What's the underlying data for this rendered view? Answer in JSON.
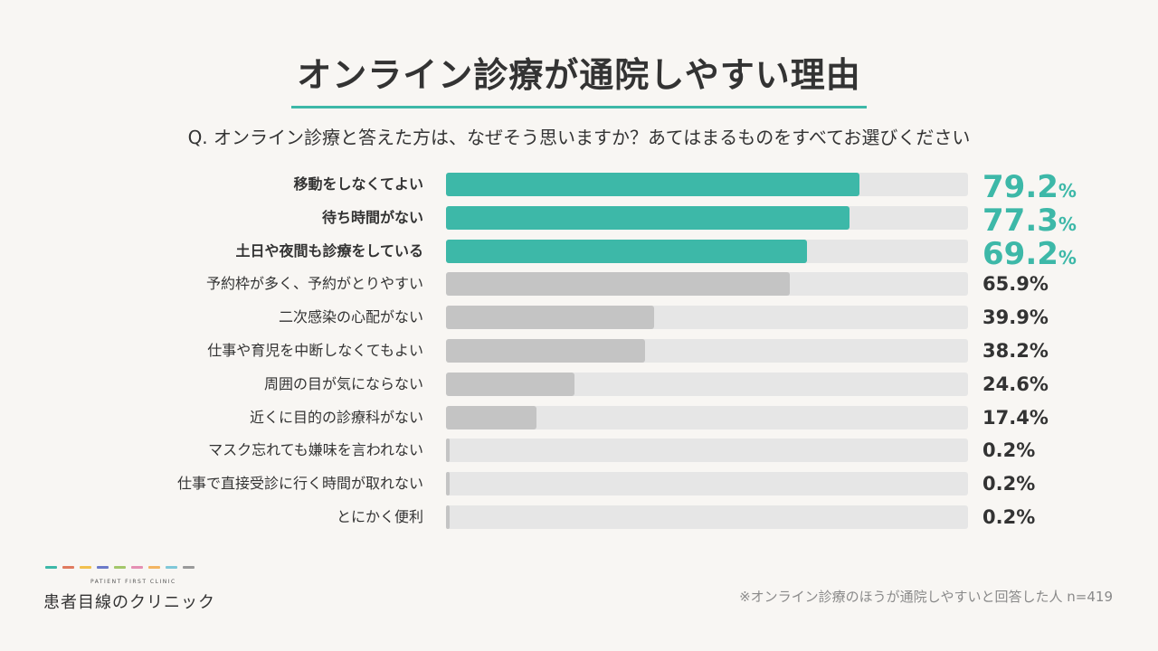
{
  "title": "オンライン診療が通院しやすい理由",
  "question": "Q. オンライン診療と答えた方は、なぜそう思いますか？あてはまるものをすべてお選びください",
  "colors": {
    "accent": "#3db8a8",
    "gray_bar": "#c4c4c4",
    "track": "#e6e6e6",
    "text": "#333333"
  },
  "chart_data": {
    "type": "bar",
    "orientation": "horizontal",
    "title": "オンライン診療が通院しやすい理由",
    "unit": "%",
    "xlim": [
      0,
      100
    ],
    "highlight_count": 3,
    "categories": [
      "移動をしなくてよい",
      "待ち時間がない",
      "土日や夜間も診療をしている",
      "予約枠が多く、予約がとりやすい",
      "二次感染の心配がない",
      "仕事や育児を中断しなくてもよい",
      "周囲の目が気にならない",
      "近くに目的の診療科がない",
      "マスク忘れても嫌味を言われない",
      "仕事で直接受診に行く時間が取れない",
      "とにかく便利"
    ],
    "values": [
      79.2,
      77.3,
      69.2,
      65.9,
      39.9,
      38.2,
      24.6,
      17.4,
      0.2,
      0.2,
      0.2
    ],
    "value_labels": [
      "79.2",
      "77.3",
      "69.2",
      "65.9%",
      "39.9%",
      "38.2%",
      "24.6%",
      "17.4%",
      "0.2%",
      "0.2%",
      "0.2%"
    ]
  },
  "footnote": "※オンライン診療のほうが通院しやすいと回答した人 n=419",
  "logo": {
    "subtitle": "PATIENT FIRST CLINIC",
    "name": "患者目線のクリニック",
    "dash_colors": [
      "#3db8a8",
      "#e07a5f",
      "#f2c14e",
      "#6c7ac9",
      "#a3c76a",
      "#e58fb3",
      "#f3b562",
      "#7fc8d8",
      "#9a9a9a"
    ]
  }
}
